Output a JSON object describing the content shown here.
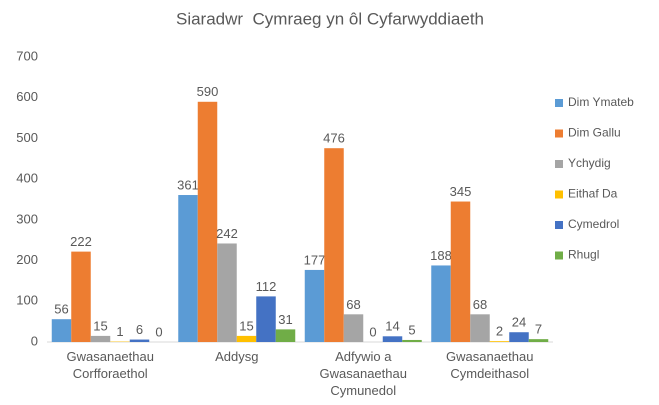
{
  "chart_data": {
    "type": "bar",
    "title": "Siaradwr  Cymraeg yn ôl Cyfarwyddiaeth",
    "categories": [
      "Gwasanaethau Corfforaethol",
      "Addysg",
      "Adfywio a Gwasanaethau Cymunedol",
      "Gwasanaethau Cymdeithasol"
    ],
    "series": [
      {
        "name": "Dim Ymateb",
        "color": "#5b9bd5",
        "values": [
          56,
          361,
          177,
          188
        ]
      },
      {
        "name": "Dim Gallu",
        "color": "#ed7d31",
        "values": [
          222,
          590,
          476,
          345
        ]
      },
      {
        "name": "Ychydig",
        "color": "#a5a5a5",
        "values": [
          15,
          242,
          68,
          68
        ]
      },
      {
        "name": "Eithaf Da",
        "color": "#ffc000",
        "values": [
          1,
          15,
          0,
          2
        ]
      },
      {
        "name": "Cymedrol",
        "color": "#4472c4",
        "values": [
          6,
          112,
          14,
          24
        ]
      },
      {
        "name": "Rhugl",
        "color": "#70ad47",
        "values": [
          0,
          31,
          5,
          7
        ]
      }
    ],
    "ylim": [
      0,
      700
    ],
    "yticks": [
      0,
      100,
      200,
      300,
      400,
      500,
      600,
      700
    ],
    "grid": false,
    "legend": "right"
  }
}
